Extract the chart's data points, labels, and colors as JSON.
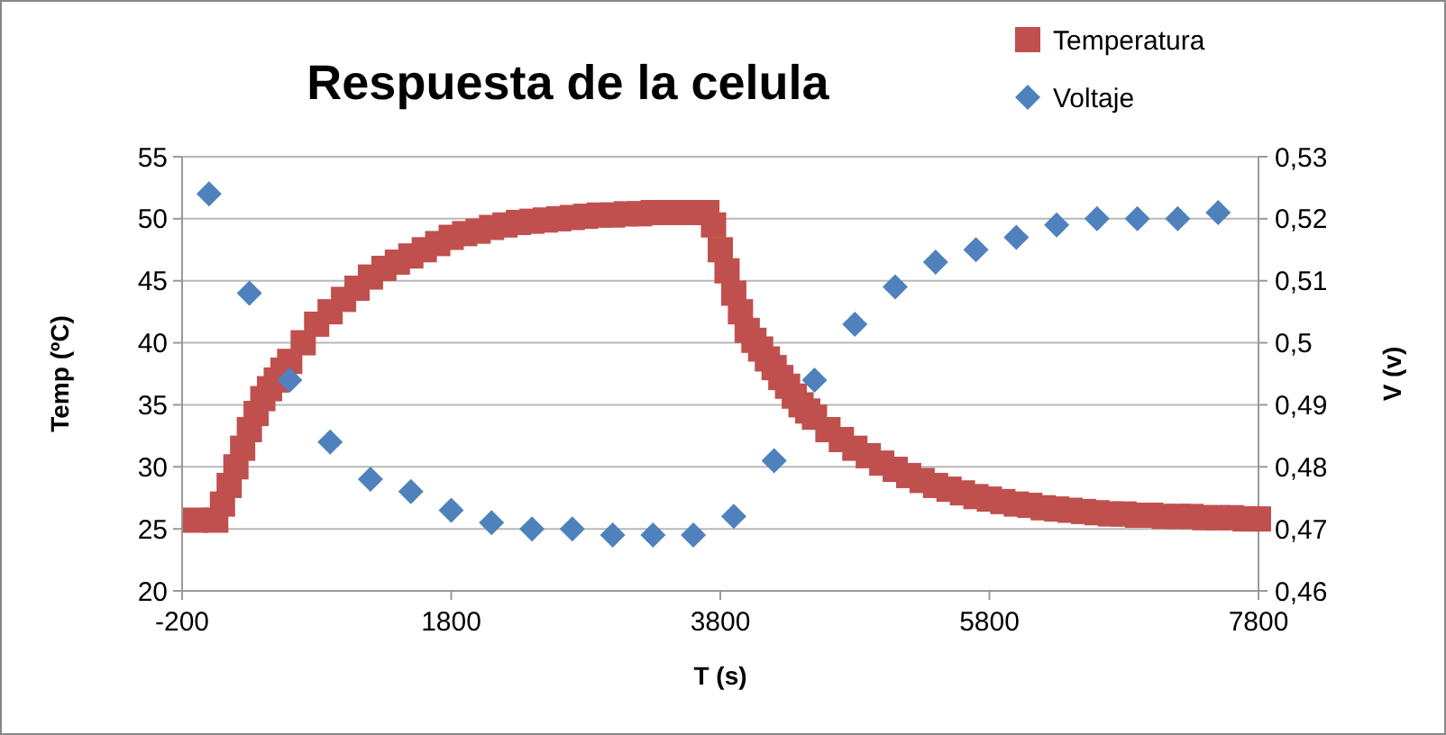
{
  "chart_data": {
    "type": "scatter",
    "title": "Respuesta de la celula",
    "xlabel": "T (s)",
    "ylabel": "Temp (ºC)",
    "y2label": "V (v)",
    "xlim": [
      -200,
      7800
    ],
    "xticks": [
      -200,
      1800,
      3800,
      5800,
      7800
    ],
    "ylim": [
      20,
      55
    ],
    "yticks": [
      20,
      25,
      30,
      35,
      40,
      45,
      50,
      55
    ],
    "y2lim": [
      0.46,
      0.53
    ],
    "y2ticks": [
      {
        "value": 0.46,
        "label": "0,46"
      },
      {
        "value": 0.47,
        "label": "0,47"
      },
      {
        "value": 0.48,
        "label": "0,48"
      },
      {
        "value": 0.49,
        "label": "0,49"
      },
      {
        "value": 0.5,
        "label": "0,5"
      },
      {
        "value": 0.51,
        "label": "0,51"
      },
      {
        "value": 0.52,
        "label": "0,52"
      },
      {
        "value": 0.53,
        "label": "0,53"
      }
    ],
    "grid": "y",
    "legend": "top right",
    "series": [
      {
        "name": "Temperatura",
        "color": "#c0504d",
        "marker": "square",
        "x": [
          -100,
          50,
          100,
          150,
          200,
          250,
          300,
          350,
          400,
          450,
          500,
          550,
          600,
          700,
          800,
          900,
          1000,
          1100,
          1200,
          1300,
          1400,
          1500,
          1600,
          1700,
          1800,
          1900,
          2000,
          2100,
          2200,
          2300,
          2400,
          2500,
          2600,
          2700,
          2800,
          2900,
          3000,
          3100,
          3200,
          3300,
          3400,
          3500,
          3600,
          3700,
          3750,
          3800,
          3850,
          3900,
          3950,
          4000,
          4050,
          4100,
          4150,
          4200,
          4250,
          4300,
          4350,
          4400,
          4450,
          4500,
          4600,
          4700,
          4800,
          4900,
          5000,
          5100,
          5200,
          5300,
          5400,
          5500,
          5600,
          5700,
          5800,
          5900,
          6000,
          6100,
          6200,
          6300,
          6400,
          6500,
          6600,
          6700,
          6800,
          6900,
          7000,
          7100,
          7200,
          7300,
          7400,
          7500,
          7600,
          7700,
          7800
        ],
        "values": [
          25.7,
          25.7,
          27,
          28.5,
          30,
          31.5,
          33,
          34.3,
          35.5,
          36.3,
          37,
          37.8,
          38.5,
          40,
          41.5,
          42.5,
          43.5,
          44.4,
          45.3,
          46,
          46.5,
          47,
          47.5,
          48,
          48.5,
          48.8,
          49,
          49.3,
          49.5,
          49.7,
          49.8,
          49.9,
          50,
          50.1,
          50.2,
          50.3,
          50.3,
          50.4,
          50.4,
          50.5,
          50.5,
          50.5,
          50.5,
          50.5,
          49.5,
          47.5,
          45.8,
          44,
          42.5,
          41,
          40.2,
          39.5,
          38.7,
          38,
          37.2,
          36.5,
          35.7,
          35,
          34.5,
          34,
          33,
          32.2,
          31.5,
          30.9,
          30.3,
          29.8,
          29.3,
          28.9,
          28.5,
          28.2,
          27.9,
          27.6,
          27.4,
          27.2,
          27,
          26.9,
          26.7,
          26.6,
          26.5,
          26.4,
          26.3,
          26.2,
          26.2,
          26.1,
          26.1,
          26,
          26,
          26,
          25.9,
          25.9,
          25.9,
          25.8,
          25.8
        ]
      },
      {
        "name": "Voltaje",
        "color": "#4f81bd",
        "marker": "diamond",
        "axis": "y2",
        "x": [
          0,
          300,
          600,
          900,
          1200,
          1500,
          1800,
          2100,
          2400,
          2700,
          3000,
          3300,
          3600,
          3900,
          4200,
          4500,
          4800,
          5100,
          5400,
          5700,
          6000,
          6300,
          6600,
          6900,
          7200,
          7500
        ],
        "values": [
          0.524,
          0.508,
          0.494,
          0.484,
          0.478,
          0.476,
          0.473,
          0.471,
          0.47,
          0.47,
          0.469,
          0.469,
          0.469,
          0.472,
          0.481,
          0.494,
          0.503,
          0.509,
          0.513,
          0.515,
          0.517,
          0.519,
          0.52,
          0.52,
          0.52,
          0.521
        ]
      }
    ]
  }
}
